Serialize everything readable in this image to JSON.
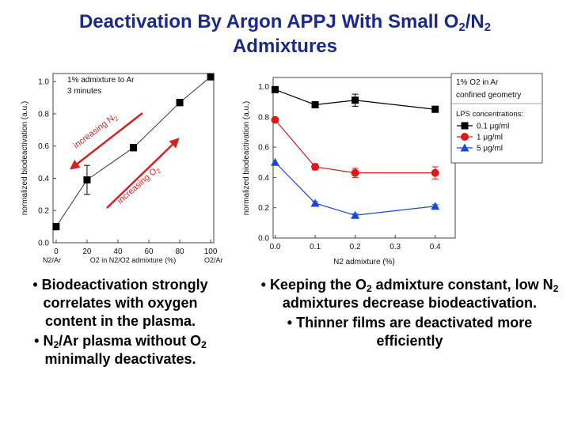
{
  "title": {
    "line1_a": "Deactivation By Argon APPJ With Small O",
    "line1_sub1": "2",
    "line1_b": "/N",
    "line1_sub2": "2",
    "line2": "Admixtures"
  },
  "colors": {
    "title": "#1a2a8c",
    "arrow": "#d92020",
    "black_series": "#000000",
    "red_series": "#e01818",
    "blue_series": "#1848d8"
  },
  "chart_data": [
    {
      "type": "line",
      "ylabel": "normalized biodeactivation (a.u.)",
      "ylim": [
        0,
        1.05
      ],
      "yticks": [
        "0.0",
        "0.2",
        "0.4",
        "0.6",
        "0.8",
        "1.0"
      ],
      "x_tick_values": [
        0,
        20,
        40,
        60,
        80,
        100
      ],
      "x_tick_labels": [
        "0",
        "20",
        "40",
        "60",
        "80",
        "100"
      ],
      "xlim": [
        -2,
        102
      ],
      "xlabel": {
        "left": "N2/Ar",
        "mid": "O2 in N2/O2 admixture (%)",
        "right": "O2/Ar"
      },
      "annotation": [
        "1% admixture to Ar",
        "3 minutes"
      ],
      "arrow_labels": {
        "n2": "increasing N",
        "n2_sub": "2",
        "o2": "increasing O",
        "o2_sub": "2"
      },
      "series": [
        {
          "x": [
            0,
            20,
            50,
            80,
            100
          ],
          "y": [
            0.1,
            0.39,
            0.59,
            0.87,
            1.03
          ],
          "err": [
            0.02,
            0.09,
            0.02,
            0.02,
            0.02
          ]
        }
      ]
    },
    {
      "type": "line",
      "ylabel": "normalized biodeactivation (a.u.)",
      "xlabel": "N2 admixture (%)",
      "ylim": [
        0,
        1.06
      ],
      "yticks": [
        "0.0",
        "0.2",
        "0.4",
        "0.6",
        "0.8",
        "1.0"
      ],
      "x_tick_values": [
        0,
        0.1,
        0.2,
        0.3,
        0.4
      ],
      "x_tick_labels": [
        "0.0",
        "0.1",
        "0.2",
        "0.3",
        "0.4"
      ],
      "xlim": [
        -0.005,
        0.45
      ],
      "legend_header": [
        "1% O2 in Ar",
        "confined geometry"
      ],
      "legend_title": "LPS concentrations:",
      "series": [
        {
          "name": "0.1 μg/ml",
          "color": "#000000",
          "marker": "square",
          "x": [
            0,
            0.1,
            0.2,
            0.4
          ],
          "y": [
            0.98,
            0.88,
            0.91,
            0.85
          ],
          "err": [
            0.0,
            0.02,
            0.04,
            0.02
          ]
        },
        {
          "name": "1 μg/ml",
          "color": "#e01818",
          "marker": "circle",
          "x": [
            0,
            0.1,
            0.2,
            0.4
          ],
          "y": [
            0.78,
            0.47,
            0.43,
            0.43
          ],
          "err": [
            0.0,
            0.02,
            0.03,
            0.04
          ]
        },
        {
          "name": "5 μg/ml",
          "color": "#1848d8",
          "marker": "triangle",
          "x": [
            0,
            0.1,
            0.2,
            0.4
          ],
          "y": [
            0.5,
            0.23,
            0.15,
            0.21
          ],
          "err": [
            0.0,
            0.01,
            0.01,
            0.01
          ]
        }
      ]
    }
  ],
  "bullets_left": [
    {
      "text": "Biodeactivation strongly correlates with oxygen content in the plasma."
    },
    {
      "pre": "N",
      "sub": "2",
      "mid": "/Ar plasma without O",
      "sub2": "2",
      "post": " minimally deactivates."
    }
  ],
  "bullets_right": [
    {
      "pre": "Keeping the O",
      "sub": "2",
      "mid": " admixture constant, low N",
      "sub2": "2",
      "post": " admixtures decrease biodeactivation."
    },
    {
      "text": "Thinner films are deactivated more efficiently"
    }
  ],
  "bullet_char": "•"
}
